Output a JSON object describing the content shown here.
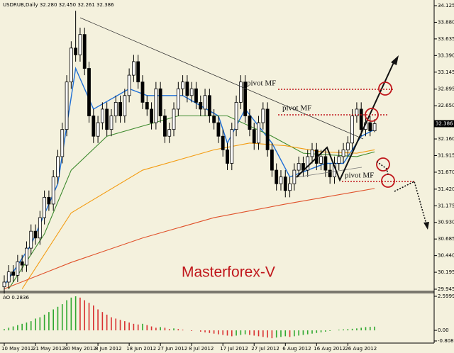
{
  "chart_data": [
    {
      "type": "candlestick",
      "title": "USDRUB,Daily  32.280 32.450 32.261 32.386",
      "open": [
        29.98,
        30.05,
        30.2,
        30.15,
        30.35,
        30.3,
        30.55,
        30.8,
        30.7,
        31.0,
        31.3,
        31.2,
        31.6,
        31.9,
        32.3,
        33.0,
        33.5,
        33.4,
        33.7,
        33.2,
        32.5,
        32.2,
        32.4,
        32.6,
        32.3,
        32.5,
        32.7,
        32.5,
        32.8,
        33.1,
        33.3,
        33.0,
        32.7,
        32.6,
        32.4,
        32.9,
        32.5,
        32.2,
        32.3,
        32.6,
        32.9,
        33.0,
        32.8,
        32.9,
        32.7,
        32.6,
        32.8,
        32.5,
        32.4,
        32.2,
        32.0,
        31.8,
        32.3,
        32.7,
        33.0,
        32.5,
        32.3,
        32.1,
        32.4,
        32.6,
        32.0,
        31.7,
        31.5,
        31.6,
        31.4,
        31.5,
        31.7,
        31.8,
        31.7,
        31.9,
        32.0,
        31.8,
        31.9,
        31.7,
        31.6,
        31.8,
        31.9,
        32.0,
        32.1,
        32.5,
        32.6,
        32.3,
        32.4,
        32.28
      ],
      "high": [
        30.15,
        30.3,
        30.3,
        30.45,
        30.45,
        30.65,
        30.9,
        30.9,
        31.1,
        31.4,
        31.4,
        31.7,
        32.0,
        32.4,
        33.1,
        33.6,
        34.05,
        33.8,
        33.8,
        33.3,
        32.6,
        32.5,
        32.7,
        32.7,
        32.6,
        32.8,
        32.8,
        32.9,
        33.2,
        33.4,
        33.4,
        33.1,
        32.8,
        32.7,
        33.0,
        33.0,
        32.6,
        32.4,
        32.7,
        33.0,
        33.1,
        33.1,
        33.0,
        33.0,
        32.8,
        32.9,
        32.9,
        32.6,
        32.5,
        32.3,
        32.1,
        32.4,
        32.8,
        33.1,
        33.1,
        32.6,
        32.4,
        32.5,
        32.7,
        32.7,
        32.1,
        31.8,
        31.7,
        31.7,
        31.6,
        31.8,
        31.9,
        31.9,
        32.0,
        32.1,
        32.1,
        32.0,
        32.0,
        31.8,
        31.9,
        32.0,
        32.1,
        32.2,
        32.6,
        32.7,
        32.7,
        32.5,
        32.5,
        32.45
      ],
      "low": [
        29.88,
        29.95,
        30.05,
        30.05,
        30.2,
        30.2,
        30.45,
        30.6,
        30.6,
        30.9,
        31.1,
        31.1,
        31.5,
        31.8,
        32.2,
        32.9,
        33.3,
        33.3,
        33.1,
        32.4,
        32.1,
        32.1,
        32.3,
        32.2,
        32.2,
        32.4,
        32.4,
        32.4,
        32.7,
        33.0,
        32.9,
        32.6,
        32.5,
        32.3,
        32.3,
        32.4,
        32.1,
        32.1,
        32.2,
        32.5,
        32.8,
        32.7,
        32.7,
        32.6,
        32.5,
        32.5,
        32.4,
        32.3,
        32.1,
        31.9,
        31.7,
        31.7,
        32.2,
        32.6,
        32.4,
        32.2,
        32.0,
        32.0,
        32.3,
        31.9,
        31.6,
        31.4,
        31.4,
        31.3,
        31.3,
        31.4,
        31.6,
        31.6,
        31.6,
        31.8,
        31.7,
        31.7,
        31.6,
        31.5,
        31.5,
        31.7,
        31.8,
        31.9,
        32.0,
        32.4,
        32.2,
        32.2,
        32.2,
        32.261
      ],
      "close": [
        30.05,
        30.2,
        30.15,
        30.35,
        30.3,
        30.55,
        30.8,
        30.7,
        31.0,
        31.3,
        31.2,
        31.6,
        31.9,
        32.3,
        33.0,
        33.5,
        33.4,
        33.7,
        33.2,
        32.5,
        32.2,
        32.4,
        32.6,
        32.3,
        32.5,
        32.7,
        32.5,
        32.8,
        33.1,
        33.3,
        33.0,
        32.7,
        32.6,
        32.4,
        32.9,
        32.5,
        32.2,
        32.3,
        32.6,
        32.9,
        33.0,
        32.8,
        32.9,
        32.7,
        32.6,
        32.8,
        32.5,
        32.4,
        32.2,
        32.0,
        31.8,
        32.3,
        32.7,
        33.0,
        32.5,
        32.3,
        32.1,
        32.4,
        32.6,
        32.0,
        31.7,
        31.5,
        31.6,
        31.4,
        31.5,
        31.7,
        31.8,
        31.7,
        31.9,
        32.0,
        31.8,
        31.9,
        31.7,
        31.6,
        31.8,
        31.9,
        32.0,
        32.1,
        32.5,
        32.6,
        32.3,
        32.4,
        32.28,
        32.386
      ],
      "up_color": "#ffffff",
      "down_color": "#000000",
      "overlays": [
        {
          "color": "#1f6fd6",
          "x": [
            0,
            6,
            12,
            16,
            20,
            28,
            32,
            40,
            48,
            50,
            54,
            60,
            64,
            72,
            76,
            80,
            83
          ],
          "values": [
            30.0,
            30.6,
            31.5,
            33.2,
            32.6,
            32.9,
            32.8,
            32.8,
            32.5,
            32.1,
            32.6,
            32.1,
            31.6,
            31.8,
            31.8,
            32.2,
            32.3
          ]
        },
        {
          "color": "#3d8a2e",
          "x": [
            1,
            9,
            15,
            23,
            39,
            50,
            60,
            67,
            79,
            83
          ],
          "values": [
            29.95,
            30.76,
            31.7,
            32.2,
            32.5,
            32.5,
            32.2,
            31.95,
            31.9,
            31.97
          ]
        },
        {
          "color": "#f39c12",
          "x": [
            4,
            15,
            31,
            47,
            55,
            63,
            71,
            79,
            83
          ],
          "values": [
            29.95,
            31.07,
            31.7,
            32.0,
            32.1,
            32.06,
            31.97,
            31.95,
            32.0
          ]
        },
        {
          "color": "#e0522b",
          "x": [
            0,
            15,
            31,
            47,
            63,
            83
          ],
          "values": [
            29.95,
            30.34,
            30.7,
            31.0,
            31.2,
            31.43
          ]
        }
      ],
      "ylim": [
        29.945,
        34.125
      ],
      "yticks": [
        34.125,
        {
          "value": 33.88,
          "label": "33.880"
        },
        33.635,
        {
          "value": 33.39,
          "label": "33.390"
        },
        33.145,
        32.895,
        {
          "value": 32.65,
          "label": "32.650"
        },
        {
          "value": 32.16,
          "label": "32.160"
        },
        31.915,
        {
          "value": 31.67,
          "label": "31.670"
        },
        {
          "value": 31.42,
          "label": "31.420"
        },
        31.175,
        {
          "value": 30.93,
          "label": "30.930"
        },
        30.685,
        {
          "value": 30.44,
          "label": "30.440"
        },
        30.195,
        29.945
      ],
      "xticks": [
        {
          "value": 0,
          "label": "10 May 2012"
        },
        {
          "value": 7,
          "label": "21 May 2012"
        },
        {
          "value": 14,
          "label": "30 May 2012"
        },
        {
          "value": 21,
          "label": "8 Jun 2012"
        },
        {
          "value": 28,
          "label": "18 Jun 2012"
        },
        {
          "value": 35,
          "label": "27 Jun 2012"
        },
        {
          "value": 42,
          "label": "8 Jul 2012"
        },
        {
          "value": 49,
          "label": "17 Jul 2012"
        },
        {
          "value": 56,
          "label": "27 Jul 2012"
        },
        {
          "value": 63,
          "label": "6 Aug 2012"
        },
        {
          "value": 70,
          "label": "16 Aug 2012"
        },
        {
          "value": 77,
          "label": "26 Aug 2012"
        }
      ],
      "annotations": [
        "pivot MF",
        "pivot MF",
        "pivot MF",
        "Masterforex-V"
      ]
    },
    {
      "type": "bar",
      "title": "AO 0.2836",
      "values": [
        0.1,
        0.2,
        0.3,
        0.4,
        0.5,
        0.6,
        0.7,
        0.9,
        1.0,
        1.2,
        1.4,
        1.6,
        1.8,
        2.0,
        2.3,
        2.5,
        2.6,
        2.5,
        2.3,
        2.1,
        1.9,
        1.6,
        1.4,
        1.2,
        1.0,
        0.9,
        0.8,
        0.7,
        0.6,
        0.5,
        0.45,
        0.5,
        0.4,
        0.3,
        0.2,
        0.25,
        0.2,
        0.1,
        0.15,
        0.1,
        0.05,
        0.0,
        -0.05,
        0.0,
        -0.1,
        -0.15,
        -0.2,
        -0.25,
        -0.3,
        -0.35,
        -0.4,
        -0.45,
        -0.4,
        -0.35,
        -0.3,
        -0.35,
        -0.4,
        -0.45,
        -0.5,
        -0.55,
        -0.6,
        -0.55,
        -0.5,
        -0.45,
        -0.5,
        -0.45,
        -0.4,
        -0.35,
        -0.3,
        -0.25,
        -0.2,
        -0.15,
        -0.1,
        -0.05,
        0.0,
        0.05,
        0.08,
        0.1,
        0.12,
        0.15,
        0.2,
        0.25,
        0.27,
        0.2836
      ],
      "up_color": "#2fa82f",
      "down_color": "#d93030",
      "ylim": [
        -0.808,
        2.5999
      ],
      "yticks": [
        2.5999,
        {
          "value": 0,
          "label": "0.00"
        },
        -0.808
      ]
    }
  ]
}
